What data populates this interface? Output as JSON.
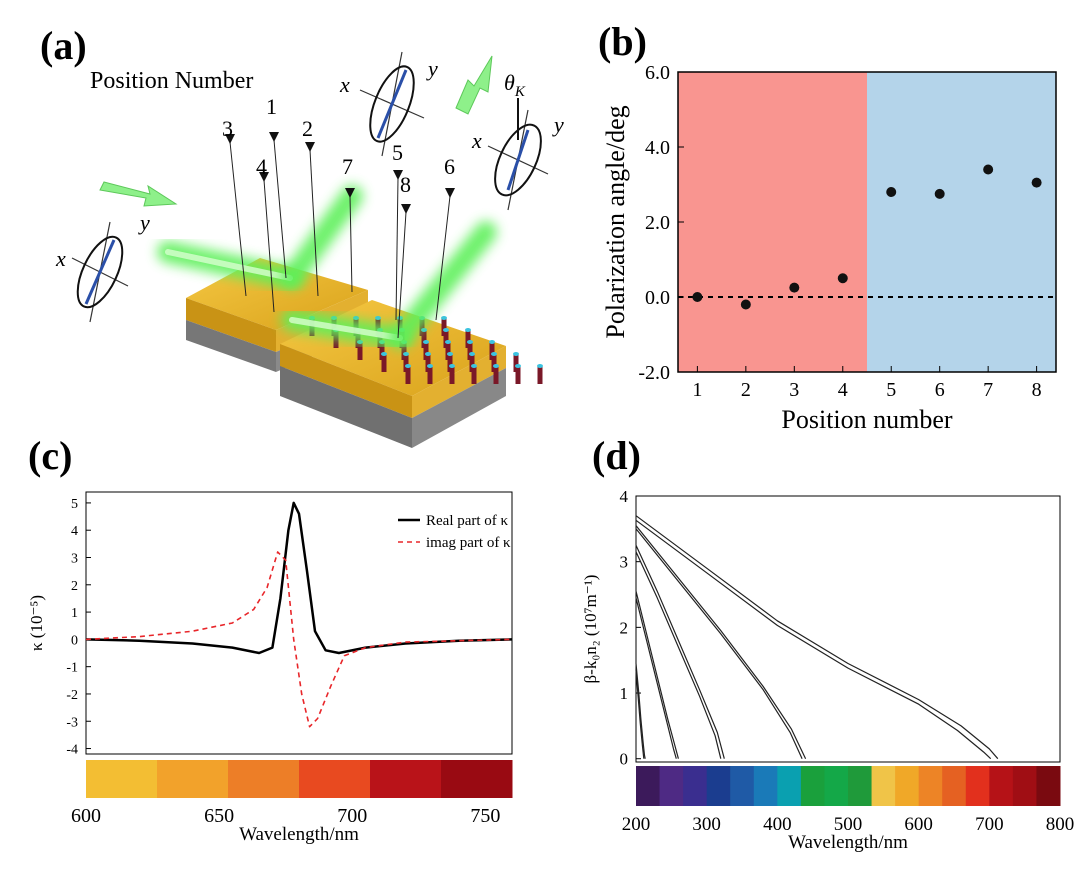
{
  "panels": {
    "a": {
      "label": "(a)",
      "position_title": "Position Number",
      "position_numbers": [
        "3",
        "4",
        "1",
        "2",
        "7",
        "5",
        "8",
        "6"
      ],
      "axis_x": "x",
      "axis_y": "y",
      "theta": "θ",
      "theta_sub": "K"
    },
    "b": {
      "label": "(b)"
    },
    "c": {
      "label": "(c)"
    },
    "d": {
      "label": "(d)"
    }
  },
  "chart_data": [
    {
      "id": "b",
      "type": "scatter",
      "xlabel": "Position number",
      "ylabel": "Polarization angle/deg",
      "x_ticks": [
        "1",
        "2",
        "3",
        "4",
        "5",
        "6",
        "7",
        "8"
      ],
      "y_ticks": [
        "-2.0",
        "0.0",
        "2.0",
        "4.0",
        "6.0"
      ],
      "xlim": [
        0.6,
        8.4
      ],
      "ylim": [
        -2.0,
        6.0
      ],
      "points": [
        [
          1,
          0.0
        ],
        [
          2,
          -0.2
        ],
        [
          3,
          0.25
        ],
        [
          4,
          0.5
        ],
        [
          5,
          2.8
        ],
        [
          6,
          2.75
        ],
        [
          7,
          3.4
        ],
        [
          8,
          3.05
        ]
      ],
      "regions": [
        {
          "x_from": 0.6,
          "x_to": 4.5,
          "color": "#f99590"
        },
        {
          "x_from": 4.5,
          "x_to": 8.4,
          "color": "#b4d4ea"
        }
      ],
      "reference_line": 0.0
    },
    {
      "id": "c",
      "type": "line",
      "xlabel": "Wavelength/nm",
      "ylabel": "κ (10⁻⁵)",
      "x_ticks": [
        "600",
        "650",
        "700",
        "750"
      ],
      "y_ticks": [
        "-4",
        "-3",
        "-2",
        "-1",
        "0",
        "1",
        "2",
        "3",
        "4",
        "5"
      ],
      "xlim": [
        600,
        760
      ],
      "ylim": [
        -4.2,
        5.4
      ],
      "series": [
        {
          "name": "Real part of κ",
          "style": "solid",
          "color": "#000000",
          "x": [
            600,
            620,
            640,
            655,
            665,
            670,
            673,
            676,
            678,
            680,
            683,
            686,
            690,
            695,
            705,
            720,
            740,
            760
          ],
          "y": [
            0,
            -0.05,
            -0.15,
            -0.3,
            -0.5,
            -0.3,
            1.5,
            4.0,
            5.0,
            4.6,
            2.5,
            0.3,
            -0.4,
            -0.5,
            -0.3,
            -0.15,
            -0.05,
            0
          ]
        },
        {
          "name": "imag part of κ",
          "style": "dashed",
          "color": "#e8262a",
          "x": [
            600,
            620,
            640,
            655,
            663,
            668,
            672,
            675,
            678,
            681,
            684,
            687,
            692,
            697,
            705,
            720,
            740,
            760
          ],
          "y": [
            0,
            0.1,
            0.3,
            0.6,
            1.1,
            1.9,
            3.2,
            2.9,
            0,
            -2.0,
            -3.2,
            -2.9,
            -1.7,
            -0.6,
            -0.3,
            -0.1,
            -0.05,
            0
          ]
        }
      ],
      "colorbar": [
        "#f3be33",
        "#f2a22b",
        "#ed7e27",
        "#e84a20",
        "#b91319",
        "#990a12"
      ]
    },
    {
      "id": "d",
      "type": "line",
      "xlabel": "Wavelength/nm",
      "ylabel": "β-k₀n₂ (10⁷m⁻¹)",
      "x_ticks": [
        "200",
        "300",
        "400",
        "500",
        "600",
        "700",
        "800"
      ],
      "y_ticks": [
        "0",
        "1",
        "2",
        "3",
        "4"
      ],
      "xlim": [
        200,
        800
      ],
      "ylim": [
        -0.05,
        4.0
      ],
      "series": [
        {
          "x": [
            200,
            204,
            207,
            210,
            212,
            213
          ],
          "y": [
            1.45,
            1.0,
            0.6,
            0.25,
            0.05,
            0.0
          ]
        },
        {
          "x": [
            200,
            203,
            206,
            209,
            211
          ],
          "y": [
            1.35,
            0.95,
            0.55,
            0.2,
            0.0
          ]
        },
        {
          "x": [
            200,
            215,
            230,
            245,
            255,
            260
          ],
          "y": [
            2.55,
            1.9,
            1.25,
            0.6,
            0.2,
            0.0
          ]
        },
        {
          "x": [
            200,
            215,
            230,
            245,
            253,
            257
          ],
          "y": [
            2.45,
            1.8,
            1.15,
            0.5,
            0.15,
            0.0
          ]
        },
        {
          "x": [
            200,
            230,
            260,
            290,
            315,
            325
          ],
          "y": [
            3.25,
            2.55,
            1.8,
            1.05,
            0.4,
            0.0
          ]
        },
        {
          "x": [
            200,
            230,
            260,
            290,
            312,
            320
          ],
          "y": [
            3.15,
            2.45,
            1.7,
            0.95,
            0.35,
            0.0
          ]
        },
        {
          "x": [
            200,
            260,
            320,
            380,
            420,
            440
          ],
          "y": [
            3.55,
            2.75,
            1.95,
            1.1,
            0.45,
            0.0
          ]
        },
        {
          "x": [
            200,
            260,
            320,
            380,
            418,
            435
          ],
          "y": [
            3.5,
            2.7,
            1.9,
            1.05,
            0.4,
            0.0
          ]
        },
        {
          "x": [
            200,
            300,
            400,
            500,
            600,
            660,
            700,
            712
          ],
          "y": [
            3.7,
            2.9,
            2.1,
            1.45,
            0.9,
            0.5,
            0.15,
            0.0
          ]
        },
        {
          "x": [
            200,
            300,
            400,
            500,
            600,
            655,
            692,
            702
          ],
          "y": [
            3.63,
            2.83,
            2.03,
            1.38,
            0.83,
            0.43,
            0.1,
            0.0
          ]
        }
      ],
      "colorbar": [
        "#3c1a5b",
        "#4e2a84",
        "#3a2e8f",
        "#1b3d8f",
        "#1f5aa6",
        "#1a7ab8",
        "#0aa0b0",
        "#1aa03c",
        "#14a848",
        "#1f9a3a",
        "#f0c448",
        "#f0a828",
        "#ed8426",
        "#e56122",
        "#e2301d",
        "#b51217",
        "#a00e14",
        "#7a0a10"
      ]
    }
  ]
}
